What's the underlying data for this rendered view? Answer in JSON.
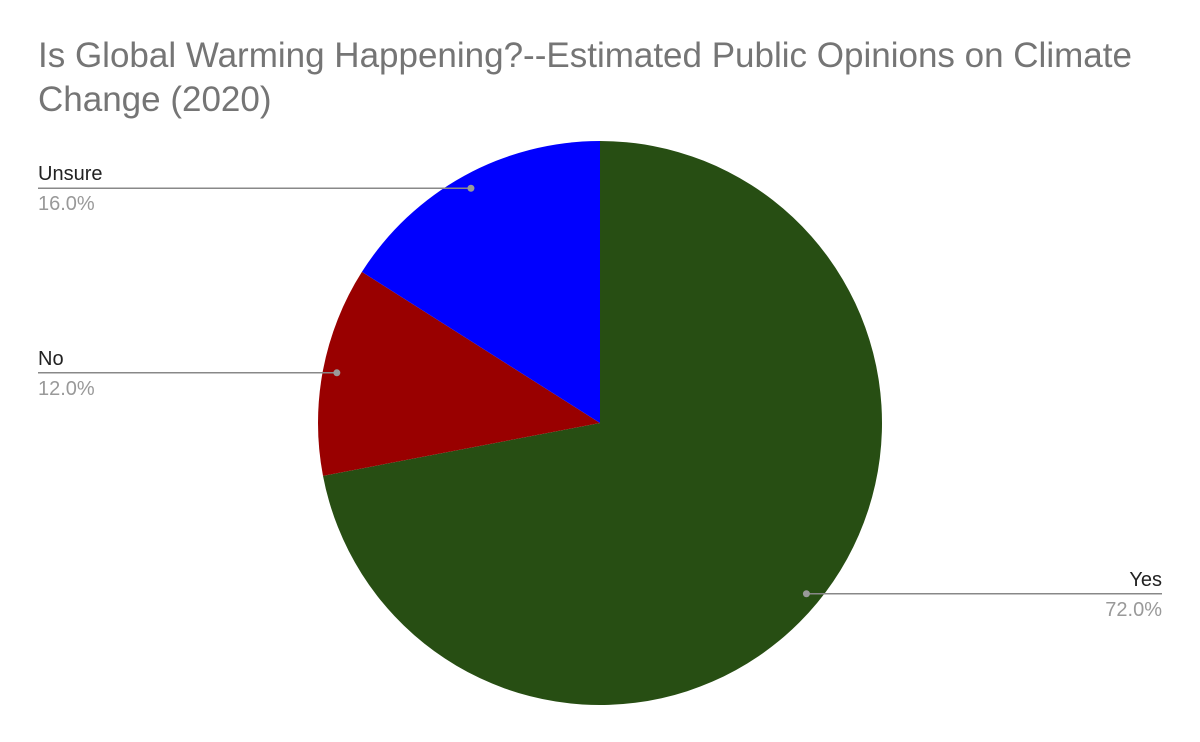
{
  "chart_data": {
    "type": "pie",
    "title": "Is Global Warming Happening?--Estimated Public Opinions on Climate Change (2020)",
    "categories": [
      "Yes",
      "No",
      "Unsure"
    ],
    "values": [
      72,
      12,
      16
    ],
    "value_labels": [
      "72.0%",
      "12.0%",
      "16.0%"
    ],
    "colors": [
      "#274e13",
      "#990000",
      "#0000ff"
    ]
  }
}
